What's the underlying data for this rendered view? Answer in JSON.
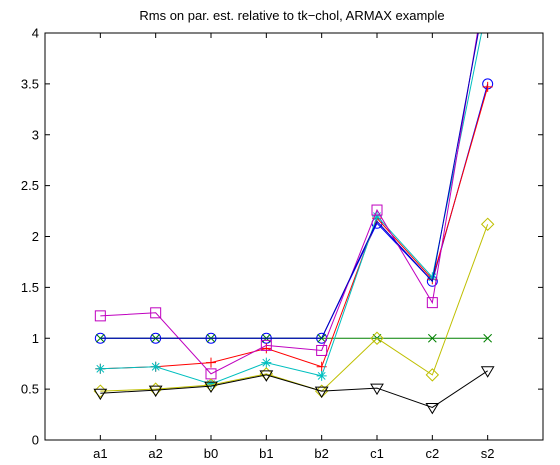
{
  "chart_data": {
    "type": "line",
    "title": "Rms on par. est. relative to tk−chol, ARMAX example",
    "xlabel": "",
    "ylabel": "",
    "categories": [
      "a1",
      "a2",
      "b0",
      "b1",
      "b2",
      "c1",
      "c2",
      "s2"
    ],
    "ylim": [
      0,
      4
    ],
    "yticks": [
      0,
      0.5,
      1,
      1.5,
      2,
      2.5,
      3,
      3.5,
      4
    ],
    "ytick_labels": [
      "0",
      "0.5",
      "1",
      "1.5",
      "2",
      "2.5",
      "3",
      "3.5",
      "4"
    ],
    "grid": false,
    "legend": "none",
    "series": [
      {
        "color": "#0000ff",
        "marker": "circle",
        "values": [
          1.0,
          1.0,
          1.0,
          1.0,
          1.0,
          2.13,
          1.56,
          3.5
        ]
      },
      {
        "color": "#008000",
        "marker": "x",
        "values": [
          1.0,
          1.0,
          1.0,
          1.0,
          1.0,
          1.0,
          1.0,
          1.0
        ]
      },
      {
        "color": "#ff0000",
        "marker": "plus",
        "values": [
          0.7,
          0.72,
          0.76,
          0.9,
          0.72,
          2.18,
          1.58,
          3.47
        ]
      },
      {
        "color": "#00bfbf",
        "marker": "star",
        "values": [
          0.7,
          0.72,
          0.55,
          0.76,
          0.63,
          2.2,
          1.6,
          4.3
        ]
      },
      {
        "color": "#bf00bf",
        "marker": "square",
        "values": [
          1.22,
          1.25,
          0.65,
          0.93,
          0.88,
          2.26,
          1.35,
          4.6
        ]
      },
      {
        "color": "#bfbf00",
        "marker": "diamond",
        "values": [
          0.48,
          0.5,
          0.54,
          0.65,
          0.48,
          1.0,
          0.64,
          2.12
        ]
      },
      {
        "color": "#000000",
        "marker": "triangle-down",
        "values": [
          0.46,
          0.49,
          0.53,
          0.64,
          0.48,
          0.51,
          0.32,
          0.68
        ]
      },
      {
        "color": "#0000bf",
        "marker": "none",
        "values": [
          1.0,
          1.0,
          1.0,
          1.0,
          1.0,
          2.15,
          1.56,
          4.5
        ]
      }
    ]
  }
}
